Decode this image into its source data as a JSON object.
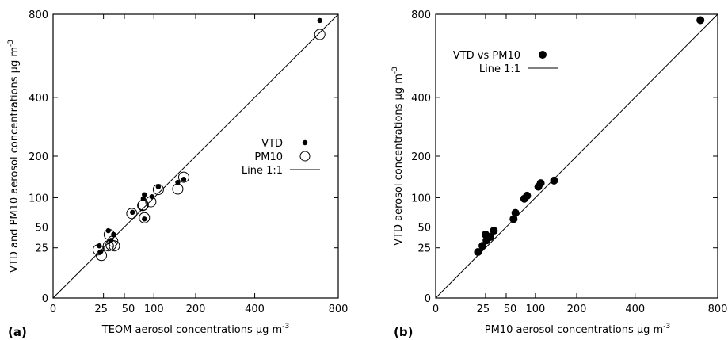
{
  "chart_data": [
    {
      "type": "scatter",
      "panel_label": "(a)",
      "xlabel": "TEOM aerosol concentrations µg m",
      "xlabel_sup": "-3",
      "ylabel": "VTD and PM10 aerosol concentrations µg m",
      "ylabel_sup": "-3",
      "scale": "sqrt",
      "xlim": [
        0,
        800
      ],
      "ylim": [
        0,
        800
      ],
      "xticks": [
        0,
        25,
        50,
        100,
        200,
        400,
        800
      ],
      "xtick_labels": [
        "0",
        "25",
        "50",
        "100",
        "200",
        "400",
        "800"
      ],
      "yticks": [
        0,
        25,
        50,
        100,
        200,
        400,
        800
      ],
      "ytick_labels": [
        "0",
        "25",
        "50",
        "100",
        "200",
        "400",
        "800"
      ],
      "xtick_labels_visible": [
        "0",
        "25 50",
        "100",
        "200",
        "400",
        "800"
      ],
      "legend_position": "right",
      "series": [
        {
          "name": "VTD",
          "marker": "small filled circle",
          "points": [
            [
              21,
              27
            ],
            [
              22,
              21
            ],
            [
              30,
              45
            ],
            [
              33,
              33
            ],
            [
              36,
              40
            ],
            [
              62,
              73
            ],
            [
              80,
              98
            ],
            [
              82,
              106
            ],
            [
              82,
              62
            ],
            [
              96,
              102
            ],
            [
              109,
              123
            ],
            [
              153,
              133
            ],
            [
              168,
              140
            ],
            [
              700,
              765
            ]
          ]
        },
        {
          "name": "PM10",
          "marker": "open circle",
          "points": [
            [
              20,
              23
            ],
            [
              23,
              18
            ],
            [
              30,
              27
            ],
            [
              31,
              40
            ],
            [
              33,
              28
            ],
            [
              35,
              32
            ],
            [
              37,
              27
            ],
            [
              61,
              71
            ],
            [
              79,
              85
            ],
            [
              80,
              86
            ],
            [
              82,
              64
            ],
            [
              94,
              92
            ],
            [
              109,
              117
            ],
            [
              153,
              118
            ],
            [
              168,
              145
            ],
            [
              700,
              690
            ]
          ]
        },
        {
          "name": "Line 1:1",
          "marker": "line",
          "points": [
            [
              0,
              0
            ],
            [
              800,
              800
            ]
          ]
        }
      ]
    },
    {
      "type": "scatter",
      "panel_label": "(b)",
      "xlabel": "PM10 aerosol concentrations µg m",
      "xlabel_sup": "-3",
      "ylabel": "VTD aerosol concentrations µg m",
      "ylabel_sup": "-3",
      "scale": "sqrt",
      "xlim": [
        0,
        800
      ],
      "ylim": [
        0,
        800
      ],
      "xticks": [
        0,
        25,
        50,
        100,
        200,
        400,
        800
      ],
      "xtick_labels": [
        "0",
        "25",
        "50",
        "100",
        "200",
        "400",
        "800"
      ],
      "yticks": [
        0,
        25,
        50,
        100,
        200,
        400,
        800
      ],
      "ytick_labels": [
        "0",
        "25",
        "50",
        "100",
        "200",
        "400",
        "800"
      ],
      "xtick_labels_visible": [
        "0",
        "25 50",
        "100",
        "200",
        "400",
        "800"
      ],
      "legend_position": "top-left",
      "series": [
        {
          "name": "VTD vs PM10",
          "marker": "filled circle",
          "points": [
            [
              18,
              21
            ],
            [
              22,
              27
            ],
            [
              25,
              40
            ],
            [
              26,
              33
            ],
            [
              28,
              37
            ],
            [
              30,
              37
            ],
            [
              34,
              45
            ],
            [
              61,
              62
            ],
            [
              64,
              72
            ],
            [
              79,
              98
            ],
            [
              84,
              104
            ],
            [
              106,
              123
            ],
            [
              111,
              131
            ],
            [
              141,
              137
            ],
            [
              705,
              767
            ]
          ]
        },
        {
          "name": "Line 1:1",
          "marker": "line",
          "points": [
            [
              0,
              0
            ],
            [
              800,
              800
            ]
          ]
        }
      ]
    }
  ]
}
